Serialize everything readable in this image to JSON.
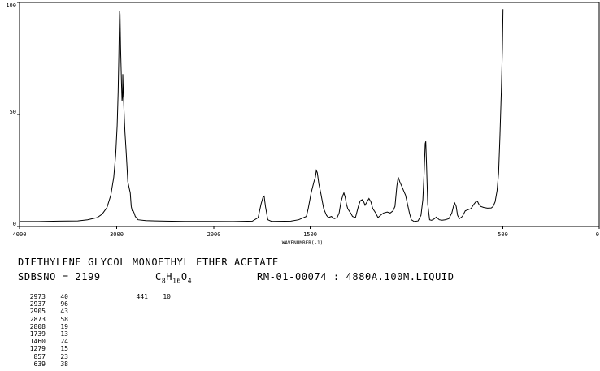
{
  "header": {
    "title": "DIETHYLENE GLYCOL MONOETHYL ETHER ACETATE",
    "sdbs_label": "SDBSNO = 2199",
    "formula_parts": [
      "C",
      "8",
      "H",
      "16",
      "O",
      "4"
    ],
    "spectrum_info": "RM-01-00074 : 4880A.100M.LIQUID"
  },
  "peak_table": [
    {
      "x": "2973",
      "y": "40"
    },
    {
      "x": "2937",
      "y": "96"
    },
    {
      "x": "2905",
      "y": "43"
    },
    {
      "x": "2873",
      "y": "58"
    },
    {
      "x": "2808",
      "y": "19"
    },
    {
      "x": "1739",
      "y": "13"
    },
    {
      "x": "1460",
      "y": "24"
    },
    {
      "x": "1279",
      "y": "15"
    },
    {
      "x": "857",
      "y": "23"
    },
    {
      "x": "639",
      "y": "38"
    }
  ],
  "peak_table_col2": [
    {
      "x": "441",
      "y": "10"
    }
  ],
  "chart_data": {
    "type": "line",
    "xlabel": "WAVENUMBER(-1)",
    "ylabel": "",
    "xlim": [
      4000,
      0
    ],
    "ylim": [
      0,
      100
    ],
    "x_ticks": [
      4000,
      3000,
      2000,
      1500,
      500,
      0
    ],
    "x_tick_labels": [
      "4000",
      "3000",
      "2000",
      "1500",
      "500",
      "0"
    ],
    "y_ticks": [
      0,
      50,
      100
    ],
    "y_tick_labels": [
      "0",
      "50",
      "100"
    ],
    "grid": false,
    "series": [
      {
        "line_color": "#000000",
        "points": [
          [
            4000,
            2.2
          ],
          [
            3800,
            2.2
          ],
          [
            3600,
            2.4
          ],
          [
            3400,
            2.5
          ],
          [
            3300,
            3.0
          ],
          [
            3200,
            4.0
          ],
          [
            3150,
            5.5
          ],
          [
            3100,
            8.5
          ],
          [
            3060,
            14
          ],
          [
            3030,
            22
          ],
          [
            3010,
            32
          ],
          [
            2995,
            45
          ],
          [
            2985,
            60
          ],
          [
            2978,
            75
          ],
          [
            2973,
            88
          ],
          [
            2970,
            96
          ],
          [
            2966,
            95
          ],
          [
            2960,
            80
          ],
          [
            2950,
            63
          ],
          [
            2945,
            56
          ],
          [
            2940,
            58
          ],
          [
            2937,
            68
          ],
          [
            2933,
            62
          ],
          [
            2925,
            52
          ],
          [
            2915,
            42
          ],
          [
            2905,
            35
          ],
          [
            2895,
            28
          ],
          [
            2885,
            20
          ],
          [
            2870,
            17
          ],
          [
            2860,
            15
          ],
          [
            2850,
            9
          ],
          [
            2840,
            7
          ],
          [
            2830,
            7
          ],
          [
            2820,
            6
          ],
          [
            2808,
            4.5
          ],
          [
            2780,
            3
          ],
          [
            2700,
            2.6
          ],
          [
            2600,
            2.5
          ],
          [
            2500,
            2.4
          ],
          [
            2300,
            2.3
          ],
          [
            2100,
            2.3
          ],
          [
            1900,
            2.2
          ],
          [
            1800,
            2.4
          ],
          [
            1770,
            4
          ],
          [
            1755,
            10
          ],
          [
            1745,
            13
          ],
          [
            1739,
            13.5
          ],
          [
            1732,
            9
          ],
          [
            1720,
            3
          ],
          [
            1700,
            2.3
          ],
          [
            1600,
            2.4
          ],
          [
            1560,
            3.0
          ],
          [
            1520,
            4.5
          ],
          [
            1510,
            8
          ],
          [
            1495,
            15
          ],
          [
            1480,
            20
          ],
          [
            1473,
            22
          ],
          [
            1468,
            25
          ],
          [
            1463,
            24
          ],
          [
            1455,
            19
          ],
          [
            1445,
            15
          ],
          [
            1430,
            8
          ],
          [
            1415,
            5
          ],
          [
            1405,
            4
          ],
          [
            1390,
            4.5
          ],
          [
            1375,
            3.5
          ],
          [
            1360,
            4
          ],
          [
            1350,
            6
          ],
          [
            1340,
            11
          ],
          [
            1330,
            14
          ],
          [
            1325,
            15
          ],
          [
            1318,
            13
          ],
          [
            1312,
            10
          ],
          [
            1305,
            8
          ],
          [
            1298,
            7
          ],
          [
            1290,
            6
          ],
          [
            1280,
            4.5
          ],
          [
            1265,
            4
          ],
          [
            1250,
            9
          ],
          [
            1240,
            11.5
          ],
          [
            1230,
            12
          ],
          [
            1222,
            11
          ],
          [
            1215,
            9.5
          ],
          [
            1205,
            11
          ],
          [
            1195,
            12.5
          ],
          [
            1185,
            11
          ],
          [
            1175,
            8
          ],
          [
            1160,
            6
          ],
          [
            1148,
            4
          ],
          [
            1135,
            5
          ],
          [
            1120,
            6
          ],
          [
            1100,
            6.5
          ],
          [
            1085,
            6
          ],
          [
            1070,
            7
          ],
          [
            1060,
            9
          ],
          [
            1050,
            18
          ],
          [
            1043,
            22
          ],
          [
            1035,
            20
          ],
          [
            1025,
            18
          ],
          [
            1015,
            16
          ],
          [
            1005,
            14
          ],
          [
            995,
            10
          ],
          [
            985,
            6
          ],
          [
            975,
            3
          ],
          [
            960,
            2.2
          ],
          [
            940,
            2.5
          ],
          [
            925,
            5
          ],
          [
            915,
            12
          ],
          [
            908,
            25
          ],
          [
            903,
            37
          ],
          [
            900,
            38
          ],
          [
            896,
            28
          ],
          [
            890,
            10
          ],
          [
            880,
            3
          ],
          [
            870,
            2.8
          ],
          [
            860,
            3.2
          ],
          [
            845,
            4.2
          ],
          [
            830,
            3
          ],
          [
            815,
            2.8
          ],
          [
            800,
            3.0
          ],
          [
            780,
            3.5
          ],
          [
            765,
            6
          ],
          [
            755,
            9.5
          ],
          [
            750,
            10.5
          ],
          [
            742,
            9
          ],
          [
            735,
            5
          ],
          [
            725,
            3.5
          ],
          [
            710,
            4.5
          ],
          [
            695,
            7
          ],
          [
            680,
            7.5
          ],
          [
            665,
            8
          ],
          [
            650,
            10
          ],
          [
            640,
            11
          ],
          [
            632,
            11.3
          ],
          [
            625,
            10
          ],
          [
            615,
            9
          ],
          [
            600,
            8.5
          ],
          [
            580,
            8.2
          ],
          [
            560,
            8.3
          ],
          [
            550,
            9
          ],
          [
            540,
            11
          ],
          [
            530,
            16
          ],
          [
            522,
            24
          ],
          [
            515,
            40
          ],
          [
            508,
            60
          ],
          [
            502,
            80
          ],
          [
            499,
            97
          ]
        ]
      }
    ]
  }
}
